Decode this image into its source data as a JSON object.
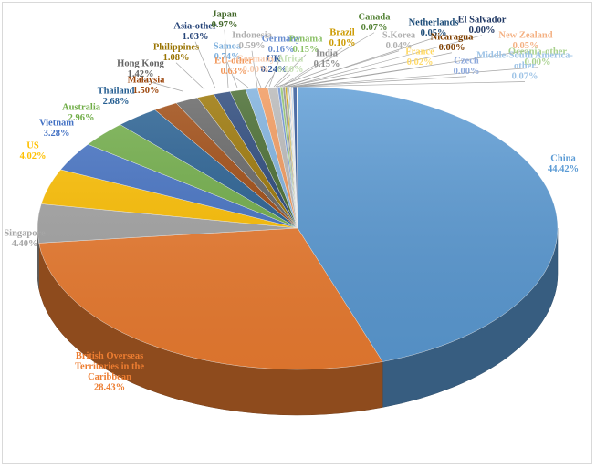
{
  "chart_data": {
    "type": "pie",
    "style": "3d",
    "title": "",
    "legend": "none",
    "slices": [
      {
        "name": "China",
        "value": 44.42,
        "label": "China\n44.42%",
        "color": "#5B9BD5"
      },
      {
        "name": "British Overseas Territories in the Caribbean",
        "value": 28.43,
        "label": "British Overseas\nTerritories in the\nCaribbean\n28.43%",
        "color": "#ED7D31"
      },
      {
        "name": "Singapore",
        "value": 4.4,
        "label": "Singapore\n4.40%",
        "color": "#A5A5A5"
      },
      {
        "name": "US",
        "value": 4.02,
        "label": "US\n4.02%",
        "color": "#FFC000"
      },
      {
        "name": "Vietnam",
        "value": 3.28,
        "label": "Vietnam\n3.28%",
        "color": "#4472C4"
      },
      {
        "name": "Australia",
        "value": 2.96,
        "label": "Australia\n2.96%",
        "color": "#70AD47"
      },
      {
        "name": "Thailand",
        "value": 2.68,
        "label": "Thailand\n2.68%",
        "color": "#255E91"
      },
      {
        "name": "Malaysia",
        "value": 1.5,
        "label": "Malaysia\n1.50%",
        "color": "#9E480E"
      },
      {
        "name": "Hong Kong",
        "value": 1.42,
        "label": "Hong Kong\n1.42%",
        "color": "#636363"
      },
      {
        "name": "Philippines",
        "value": 1.08,
        "label": "Philippines\n1.08%",
        "color": "#997300"
      },
      {
        "name": "Asia-other",
        "value": 1.03,
        "label": "Asia-other\n1.03%",
        "color": "#264478"
      },
      {
        "name": "Japan",
        "value": 0.97,
        "label": "Japan\n0.97%",
        "color": "#43682B"
      },
      {
        "name": "Samoa",
        "value": 0.74,
        "label": "Samoa\n0.74%",
        "color": "#7CAFDD"
      },
      {
        "name": "EU-other",
        "value": 0.63,
        "label": "EU-other\n0.63%",
        "color": "#F1975A"
      },
      {
        "name": "Indonesia",
        "value": 0.59,
        "label": "Indonesia\n0.59%",
        "color": "#B7B7B7"
      },
      {
        "name": "Germany",
        "value": 0.16,
        "label": "Germany\n0.16%",
        "color": "#698ED0"
      },
      {
        "name": "Panama",
        "value": 0.15,
        "label": "Panama\n0.15%",
        "color": "#8CC168"
      },
      {
        "name": "India",
        "value": 0.15,
        "label": "India\n0.15%",
        "color": "#8C8C8C"
      },
      {
        "name": "Brazil",
        "value": 0.1,
        "label": "Brazil\n0.10%",
        "color": "#CC9A00"
      },
      {
        "name": "Canada",
        "value": 0.07,
        "label": "Canada\n0.07%",
        "color": "#548235"
      },
      {
        "name": "S.Korea",
        "value": 0.04,
        "label": "S.Korea\n0.04%",
        "color": "#C9C9C9"
      },
      {
        "name": "Netherlands",
        "value": 0.05,
        "label": "Netherlands\n0.05%",
        "color": "#1F4E79"
      },
      {
        "name": "Nicaragua",
        "value": 0.0,
        "label": "Nicaragua\n0.00%",
        "color": "#7F3F00"
      },
      {
        "name": "El Salvador",
        "value": 0.0,
        "label": "El Salvador\n0.00%",
        "color": "#203864"
      },
      {
        "name": "New Zealand",
        "value": 0.05,
        "label": "New Zealand\n0.05%",
        "color": "#F4B183"
      },
      {
        "name": "Oceania-other",
        "value": 0.0,
        "label": "Oceania-other\n0.00%",
        "color": "#A9D18E"
      },
      {
        "name": "Middle-South America-other",
        "value": 0.07,
        "label": "Middle-South America-\nother\n0.07%",
        "color": "#9DC3E6"
      },
      {
        "name": "Czech",
        "value": 0.0,
        "label": "Czech\n0.00%",
        "color": "#8FAADC"
      },
      {
        "name": "France",
        "value": 0.02,
        "label": "France\n0.02%",
        "color": "#FFD966"
      },
      {
        "name": "UK",
        "value": 0.24,
        "label": "UK\n0.24%",
        "color": "#2F5597"
      },
      {
        "name": "Africa",
        "value": 0.0,
        "label": "Africa\n0.00%",
        "color": "#C5E0B4"
      },
      {
        "name": "Germany-other",
        "value": 0.0,
        "label": "Germany\n0.00%",
        "color": "#F8CBAD"
      }
    ]
  }
}
